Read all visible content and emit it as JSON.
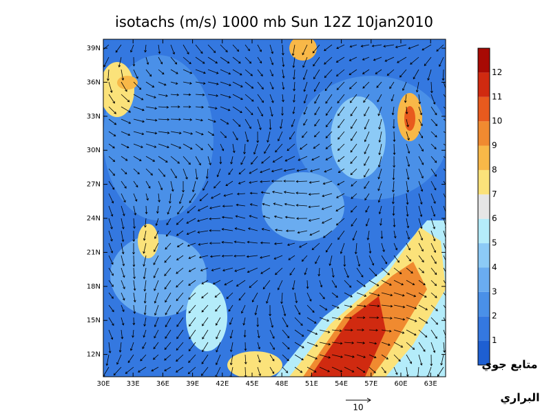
{
  "title": "isotachs (m/s) 1000 mb Sun 12Z 10jan2010",
  "lat_labels": [
    "39N",
    "36N",
    "33N",
    "30N",
    "27N",
    "24N",
    "21N",
    "18N",
    "15N",
    "12N"
  ],
  "lon_labels": [
    "30E",
    "33E",
    "36E",
    "39E",
    "42E",
    "45E",
    "48E",
    "51E",
    "54E",
    "57E",
    "60E",
    "63E"
  ],
  "colorbar": {
    "labels": [
      1,
      2,
      3,
      4,
      5,
      6,
      7,
      8,
      9,
      10,
      11,
      12
    ],
    "colors": [
      "#1e5fd2",
      "#3478e0",
      "#4a90e8",
      "#6aacf0",
      "#8ccaf6",
      "#b4ecfa",
      "#e6e6e6",
      "#fbe27a",
      "#f8b848",
      "#f08a30",
      "#e85a1e",
      "#d02a10",
      "#a80a04"
    ]
  },
  "reference_vector": "10",
  "credit": [
    "متابع جوي",
    "البراري"
  ]
}
